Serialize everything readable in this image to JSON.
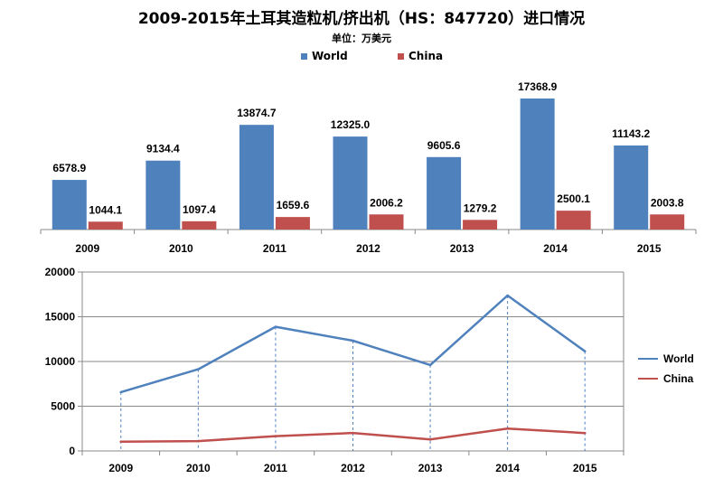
{
  "title": "2009-2015年土耳其造粒机/挤出机（HS：847720）进口情况",
  "subtitle": "单位：万美元",
  "colors": {
    "world": "#4f81bd",
    "china": "#c0504d"
  },
  "legend": {
    "world": "World",
    "china": "China"
  },
  "chart_data": [
    {
      "type": "bar",
      "categories": [
        "2009",
        "2010",
        "2011",
        "2012",
        "2013",
        "2014",
        "2015"
      ],
      "series": [
        {
          "name": "World",
          "values": [
            6578.9,
            9134.4,
            13874.7,
            12325.0,
            9605.6,
            17368.9,
            11143.2
          ],
          "labels": [
            "6578.9",
            "9134.4",
            "13874.7",
            "12325.0",
            "9605.6",
            "17368.9",
            "11143.2"
          ]
        },
        {
          "name": "China",
          "values": [
            1044.1,
            1097.4,
            1659.6,
            2006.2,
            1279.2,
            2500.1,
            2003.8
          ],
          "labels": [
            "1044.1",
            "1097.4",
            "1659.6",
            "2006.2",
            "1279.2",
            "2500.1",
            "2003.8"
          ]
        }
      ],
      "legend_position": "top"
    },
    {
      "type": "line",
      "categories": [
        "2009",
        "2010",
        "2011",
        "2012",
        "2013",
        "2014",
        "2015"
      ],
      "series": [
        {
          "name": "World",
          "values": [
            6578.9,
            9134.4,
            13874.7,
            12325.0,
            9605.6,
            17368.9,
            11143.2
          ]
        },
        {
          "name": "China",
          "values": [
            1044.1,
            1097.4,
            1659.6,
            2006.2,
            1279.2,
            2500.1,
            2003.8
          ]
        }
      ],
      "ylim": [
        0,
        20000
      ],
      "yticks": [
        "0",
        "5000",
        "10000",
        "15000",
        "20000"
      ],
      "grid": true,
      "drop_lines": true,
      "legend_position": "right"
    }
  ]
}
